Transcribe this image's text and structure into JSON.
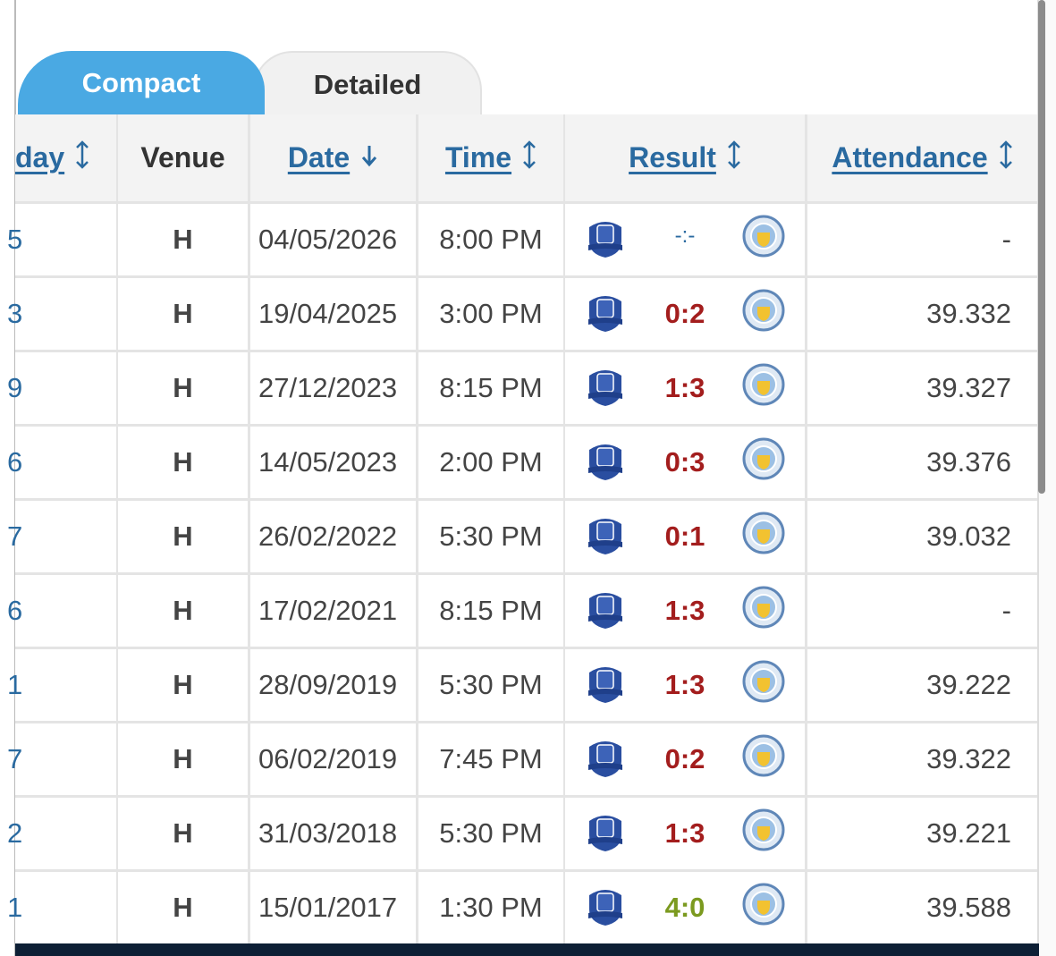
{
  "tabs": [
    "Compact",
    "Detailed"
  ],
  "header": [
    "day",
    "Venue",
    "Date",
    "Time",
    "Result",
    "Attendance"
  ],
  "rows": [
    {
      "matchday": "5",
      "venue": "H",
      "date": "04/05/2026",
      "time": "8:00 PM",
      "score": "-:-",
      "score_color": "#2a6aa0",
      "attendance": "-"
    },
    {
      "matchday": "3",
      "venue": "H",
      "date": "19/04/2025",
      "time": "3:00 PM",
      "score": "0:2",
      "score_color": "#a31d1d",
      "attendance": "39.332"
    },
    {
      "matchday": "9",
      "venue": "H",
      "date": "27/12/2023",
      "time": "8:15 PM",
      "score": "1:3",
      "score_color": "#a31d1d",
      "attendance": "39.327"
    },
    {
      "matchday": "6",
      "venue": "H",
      "date": "14/05/2023",
      "time": "2:00 PM",
      "score": "0:3",
      "score_color": "#a31d1d",
      "attendance": "39.376"
    },
    {
      "matchday": "7",
      "venue": "H",
      "date": "26/02/2022",
      "time": "5:30 PM",
      "score": "0:1",
      "score_color": "#a31d1d",
      "attendance": "39.032"
    },
    {
      "matchday": "6",
      "venue": "H",
      "date": "17/02/2021",
      "time": "8:15 PM",
      "score": "1:3",
      "score_color": "#a31d1d",
      "attendance": "-"
    },
    {
      "matchday": "1",
      "venue": "H",
      "date": "28/09/2019",
      "time": "5:30 PM",
      "score": "1:3",
      "score_color": "#a31d1d",
      "attendance": "39.222"
    },
    {
      "matchday": "7",
      "venue": "H",
      "date": "06/02/2019",
      "time": "7:45 PM",
      "score": "0:2",
      "score_color": "#a31d1d",
      "attendance": "39.322"
    },
    {
      "matchday": "2",
      "venue": "H",
      "date": "31/03/2018",
      "time": "5:30 PM",
      "score": "1:3",
      "score_color": "#a31d1d",
      "attendance": "39.221"
    },
    {
      "matchday": "1",
      "venue": "H",
      "date": "15/01/2017",
      "time": "1:30 PM",
      "score": "4:0",
      "score_color": "#7b9a1f",
      "attendance": "39.588"
    }
  ]
}
